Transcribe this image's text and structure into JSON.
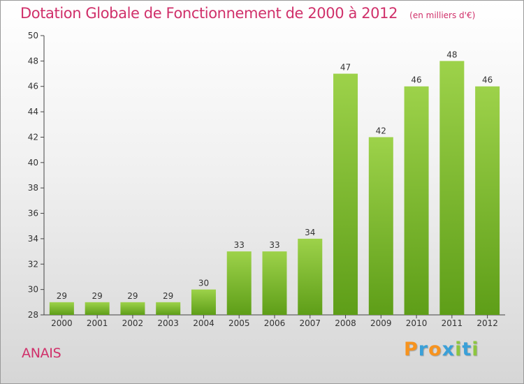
{
  "header": {
    "title": "Dotation Globale de Fonctionnement de 2000 à 2012",
    "unit": "(en milliers d'€)"
  },
  "footer": {
    "place": "ANAIS",
    "logo_letters": [
      "P",
      "r",
      "o",
      "x",
      "i",
      "t",
      "i"
    ],
    "logo_colors": [
      "#f7931e",
      "#3aa0d8",
      "#f7931e",
      "#3aa0d8",
      "#8dc63f",
      "#3aa0d8",
      "#8dc63f"
    ]
  },
  "colors": {
    "bar_top": "#9dd24a",
    "bar_bottom": "#5e9e18",
    "title": "#d0306a"
  },
  "chart_data": {
    "type": "bar",
    "title": "Dotation Globale de Fonctionnement de 2000 à 2012",
    "subtitle": "(en milliers d'€)",
    "xlabel": "",
    "ylabel": "",
    "categories": [
      "2000",
      "2001",
      "2002",
      "2003",
      "2004",
      "2005",
      "2006",
      "2007",
      "2008",
      "2009",
      "2010",
      "2011",
      "2012"
    ],
    "values": [
      29,
      29,
      29,
      29,
      30,
      33,
      33,
      34,
      47,
      42,
      46,
      48,
      46
    ],
    "ylim": [
      28,
      50
    ],
    "yticks": [
      28,
      30,
      32,
      34,
      36,
      38,
      40,
      42,
      44,
      46,
      48,
      50
    ],
    "grid": false,
    "legend": "none"
  }
}
